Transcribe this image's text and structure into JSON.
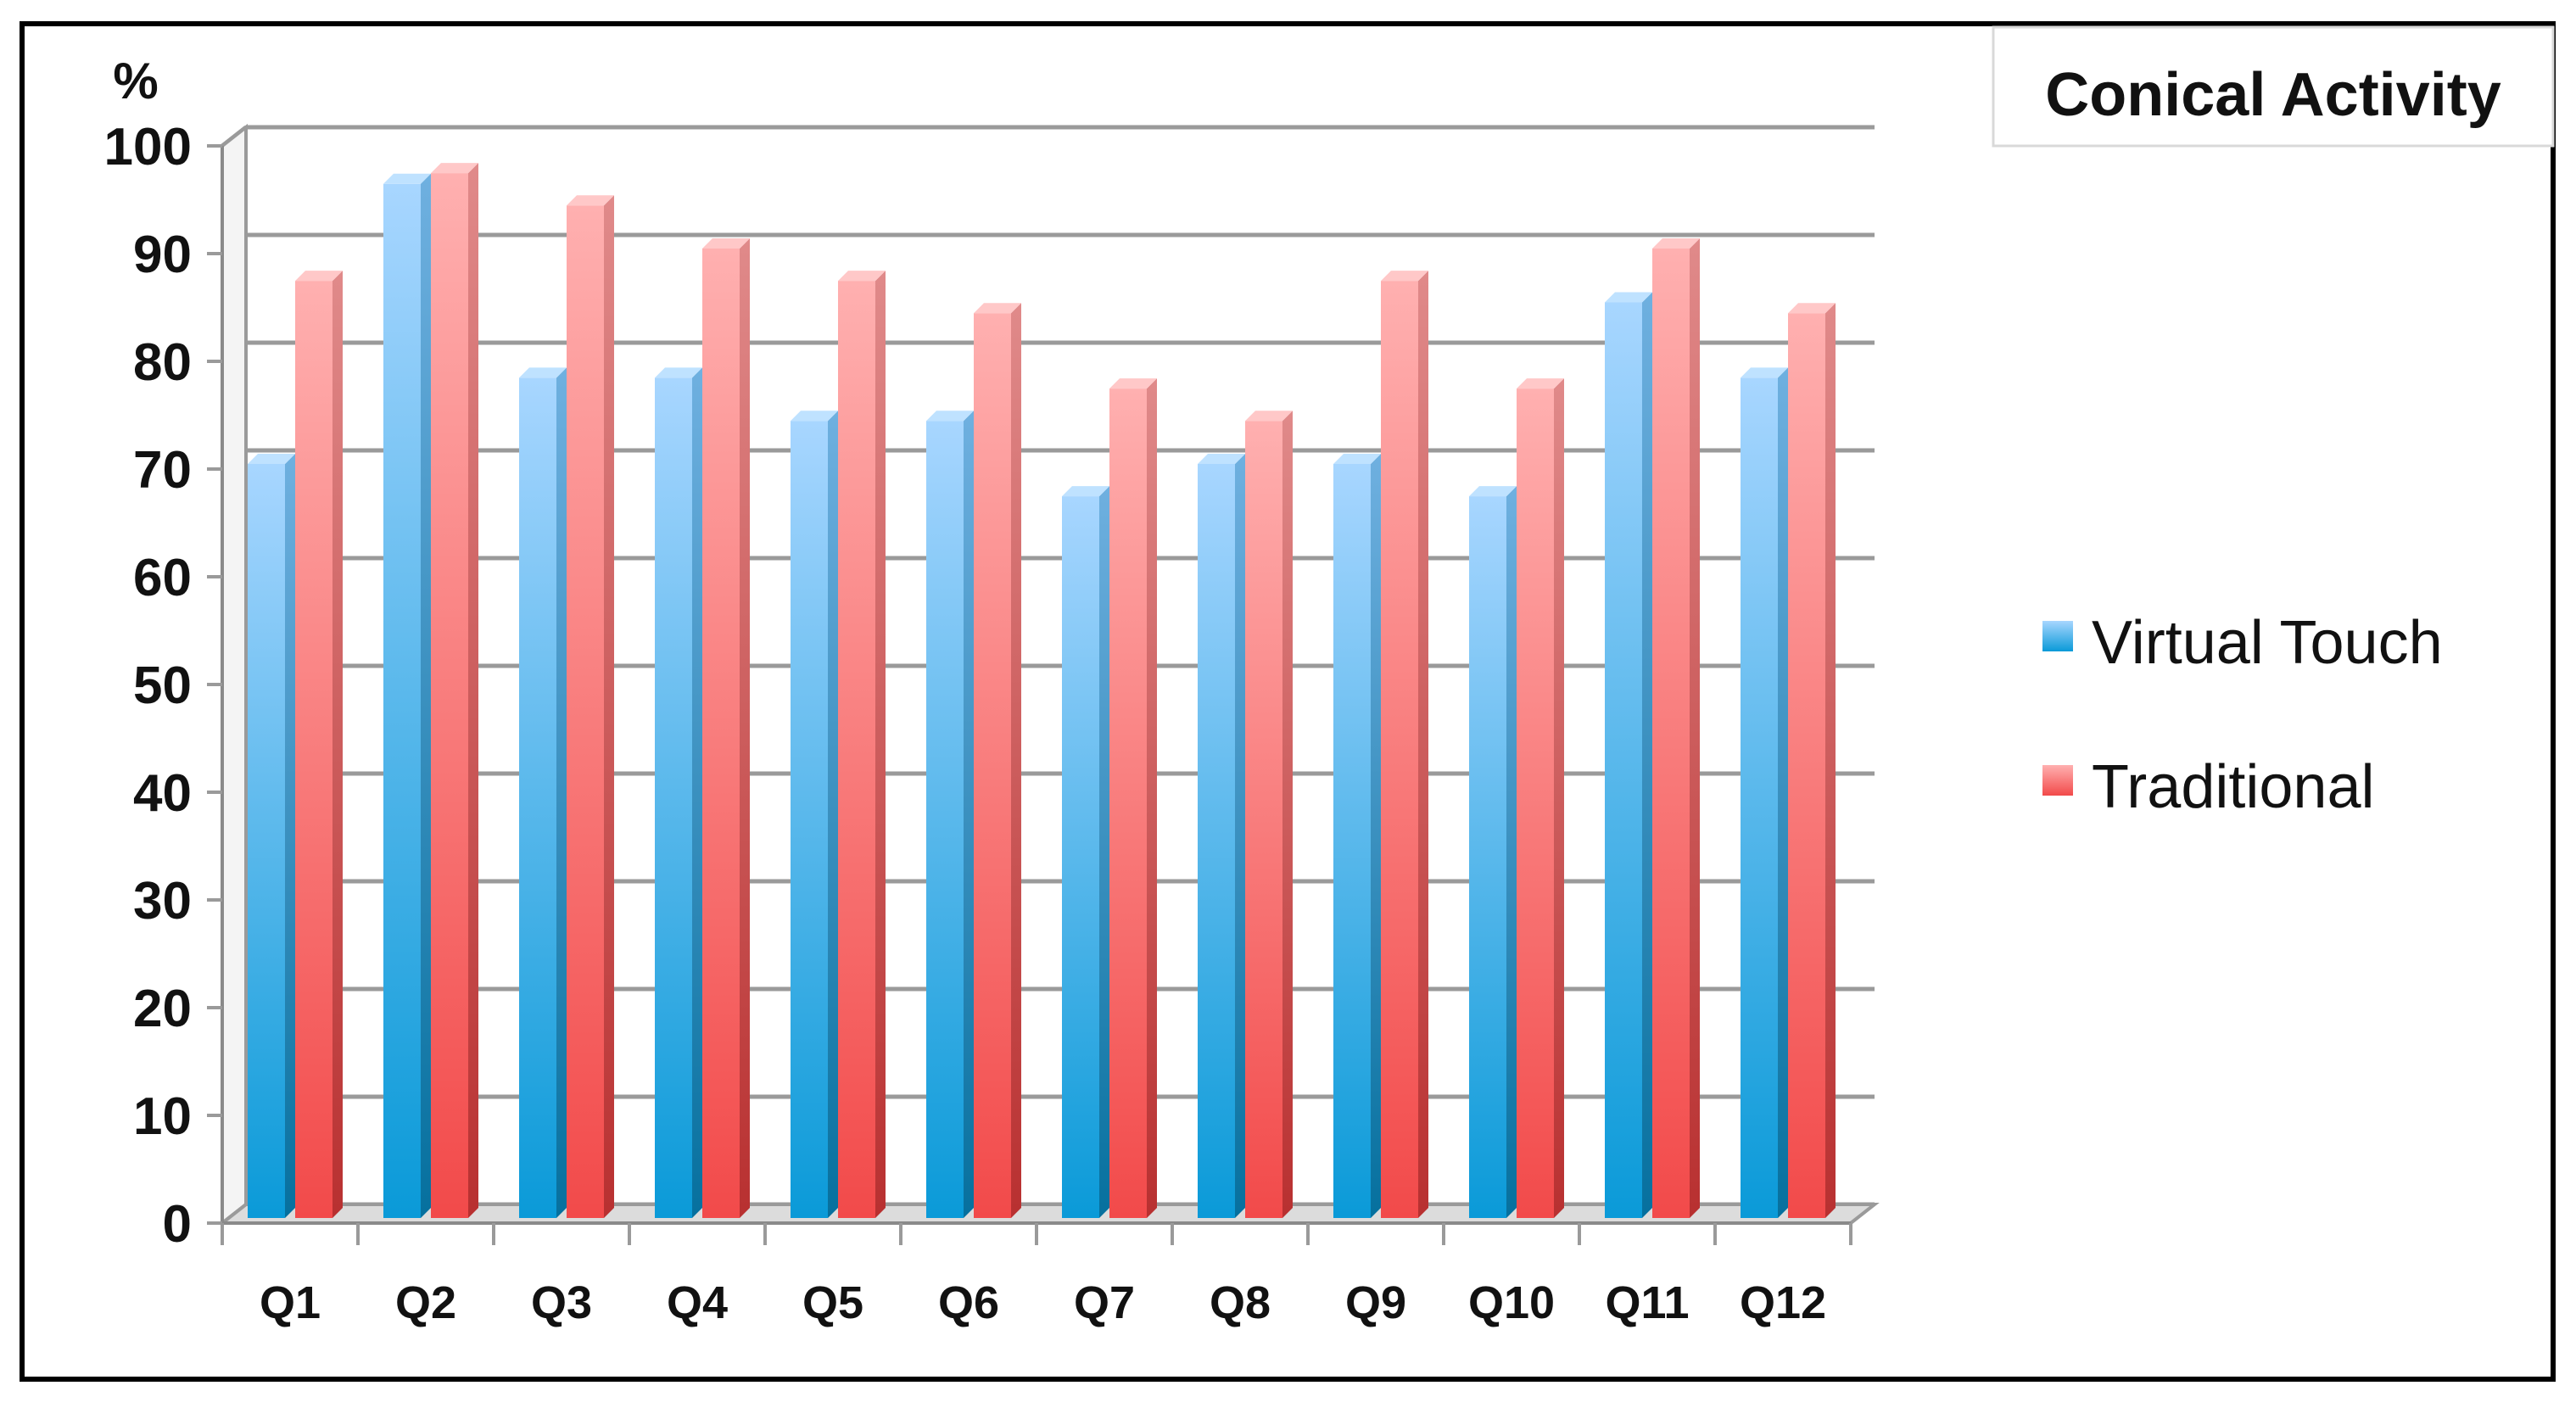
{
  "chart_data": {
    "type": "bar",
    "title": "Conical Activity",
    "ylabel": "%",
    "xlabel": "",
    "ylim": [
      0,
      100
    ],
    "yticks": [
      0,
      10,
      20,
      30,
      40,
      50,
      60,
      70,
      80,
      90,
      100
    ],
    "grid": true,
    "legend_position": "right",
    "categories": [
      "Q1",
      "Q2",
      "Q3",
      "Q4",
      "Q5",
      "Q6",
      "Q7",
      "Q8",
      "Q9",
      "Q10",
      "Q11",
      "Q12"
    ],
    "series": [
      {
        "name": "Virtual Touch",
        "color": "#4aa8e8",
        "values": [
          70,
          96,
          78,
          78,
          74,
          74,
          67,
          70,
          70,
          67,
          85,
          78
        ]
      },
      {
        "name": "Traditional",
        "color": "#f46a6a",
        "values": [
          87,
          97,
          94,
          90,
          87,
          84,
          77,
          74,
          87,
          77,
          90,
          84
        ]
      }
    ]
  }
}
